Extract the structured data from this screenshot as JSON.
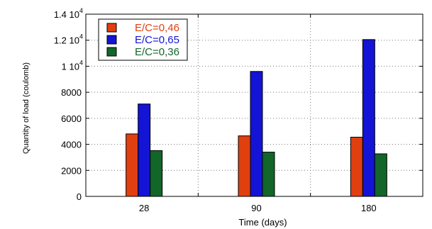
{
  "chart_data": {
    "type": "bar",
    "xlabel": "Time (days)",
    "ylabel": "Quantity of load (coulomb)",
    "categories": [
      "28",
      "90",
      "180"
    ],
    "ylim": [
      0,
      14000
    ],
    "yticks": [
      {
        "value": 0,
        "label": "0"
      },
      {
        "value": 2000,
        "label": "2000"
      },
      {
        "value": 4000,
        "label": "4000"
      },
      {
        "value": 6000,
        "label": "6000"
      },
      {
        "value": 8000,
        "label": "8000"
      },
      {
        "value": 10000,
        "label": "1 10",
        "exp": "4"
      },
      {
        "value": 12000,
        "label": "1.2 10",
        "exp": "4"
      },
      {
        "value": 14000,
        "label": "1.4 10",
        "exp": "4"
      }
    ],
    "grid": true,
    "legend_position": "top-left",
    "series": [
      {
        "name": "E/C=0,46",
        "color": "#e0400f",
        "values": [
          4800,
          4650,
          4550
        ]
      },
      {
        "name": "E/C=0,65",
        "color": "#1414d6",
        "values": [
          7100,
          9600,
          12050
        ]
      },
      {
        "name": "E/C=0,36",
        "color": "#12662a",
        "values": [
          3520,
          3400,
          3270
        ]
      }
    ]
  }
}
